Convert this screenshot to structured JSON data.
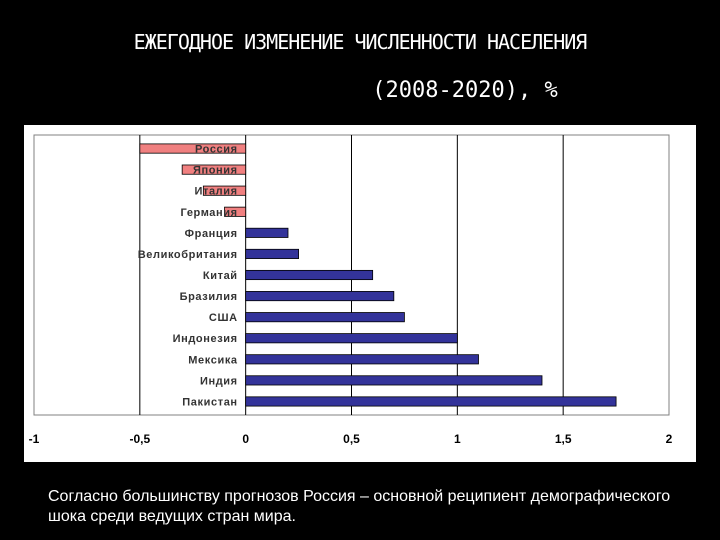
{
  "slide": {
    "title_line1": "ЕЖЕГОДНОЕ ИЗМЕНЕНИЕ ЧИСЛЕННОСТИ НАСЕЛЕНИЯ",
    "title_line2": "(2008-2020), %",
    "caption": "Согласно большинству прогнозов Россия – основной реципиент демографического шока среди ведущих стран мира."
  },
  "colors": {
    "negative_bar": "#f08080",
    "positive_bar": "#33339a",
    "bar_outline": "#000000",
    "gridline": "#000000"
  },
  "chart_data": {
    "type": "bar",
    "orientation": "horizontal",
    "categories": [
      "Россия",
      "Япония",
      "Италия",
      "Германия",
      "Франция",
      "Великобритания",
      "Китай",
      "Бразилия",
      "США",
      "Индонезия",
      "Мексика",
      "Индия",
      "Пакистан"
    ],
    "values": [
      -0.5,
      -0.3,
      -0.2,
      -0.1,
      0.2,
      0.25,
      0.6,
      0.7,
      0.75,
      1.0,
      1.1,
      1.4,
      1.75
    ],
    "xlim": [
      -1,
      2
    ],
    "xticks": [
      "-1",
      "-0,5",
      "0",
      "0,5",
      "1",
      "1,5",
      "2"
    ],
    "grid": true,
    "legend": "none"
  }
}
